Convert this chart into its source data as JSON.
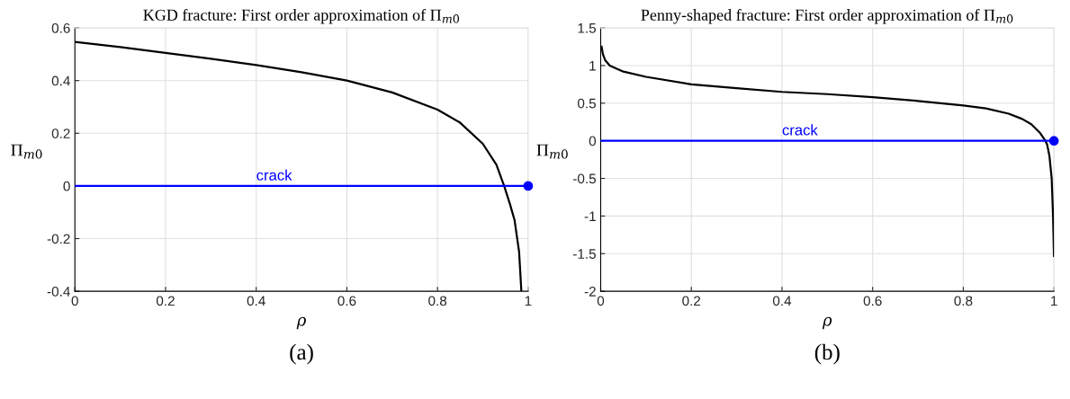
{
  "chart_data": [
    {
      "type": "line",
      "title": "KGD fracture: First order approximation of Π$_{m0}$",
      "xlabel": "ρ",
      "ylabel": "Π$_{m0}$",
      "xlim": [
        0,
        1
      ],
      "ylim": [
        -0.4,
        0.6
      ],
      "xticks": [
        0,
        0.2,
        0.4,
        0.6,
        0.8,
        1
      ],
      "yticks": [
        -0.4,
        -0.2,
        0,
        0.2,
        0.4,
        0.6
      ],
      "grid": true,
      "series": [
        {
          "color": "#000000",
          "x": [
            0,
            0.1,
            0.2,
            0.3,
            0.4,
            0.5,
            0.6,
            0.7,
            0.8,
            0.85,
            0.9,
            0.93,
            0.947,
            0.96,
            0.97,
            0.98,
            0.985
          ],
          "values": [
            0.547,
            0.527,
            0.505,
            0.483,
            0.459,
            0.432,
            0.4,
            0.355,
            0.29,
            0.24,
            0.16,
            0.08,
            0,
            -0.07,
            -0.13,
            -0.25,
            -0.4
          ]
        },
        {
          "color": "#0000ff",
          "x": [
            0,
            1
          ],
          "values": [
            0,
            0
          ]
        },
        {
          "type": "scatter",
          "marker": "circle",
          "color": "#0000ff",
          "x": [
            1
          ],
          "values": [
            0
          ]
        }
      ],
      "annotations": [
        {
          "text": "crack",
          "x": 0.4,
          "y": 0
        },
        "(a)"
      ]
    },
    {
      "type": "line",
      "title": "Penny-shaped fracture: First order approximation of Π$_{m0}$",
      "xlabel": "ρ",
      "ylabel": "Π$_{m0}$",
      "xlim": [
        0,
        1
      ],
      "ylim": [
        -2,
        1.5
      ],
      "xticks": [
        0,
        0.2,
        0.4,
        0.6,
        0.8,
        1
      ],
      "yticks": [
        -2,
        -1.5,
        -1,
        -0.5,
        0,
        0.5,
        1,
        1.5
      ],
      "grid": true,
      "series": [
        {
          "color": "#000000",
          "x": [
            0.002,
            0.005,
            0.01,
            0.02,
            0.05,
            0.1,
            0.2,
            0.3,
            0.4,
            0.5,
            0.6,
            0.7,
            0.8,
            0.85,
            0.9,
            0.93,
            0.95,
            0.97,
            0.981,
            0.985,
            0.99,
            0.995,
            0.998,
            1
          ],
          "values": [
            1.25,
            1.15,
            1.07,
            1.0,
            0.92,
            0.85,
            0.75,
            0.7,
            0.65,
            0.62,
            0.58,
            0.53,
            0.47,
            0.43,
            0.36,
            0.29,
            0.22,
            0.1,
            0,
            -0.05,
            -0.2,
            -0.5,
            -1.0,
            -1.53
          ]
        },
        {
          "color": "#0000ff",
          "x": [
            0,
            1
          ],
          "values": [
            0,
            0
          ]
        },
        {
          "type": "scatter",
          "marker": "circle",
          "color": "#0000ff",
          "x": [
            1
          ],
          "values": [
            0
          ]
        }
      ],
      "annotations": [
        {
          "text": "crack",
          "x": 0.4,
          "y": 0
        },
        "(b)"
      ]
    }
  ]
}
